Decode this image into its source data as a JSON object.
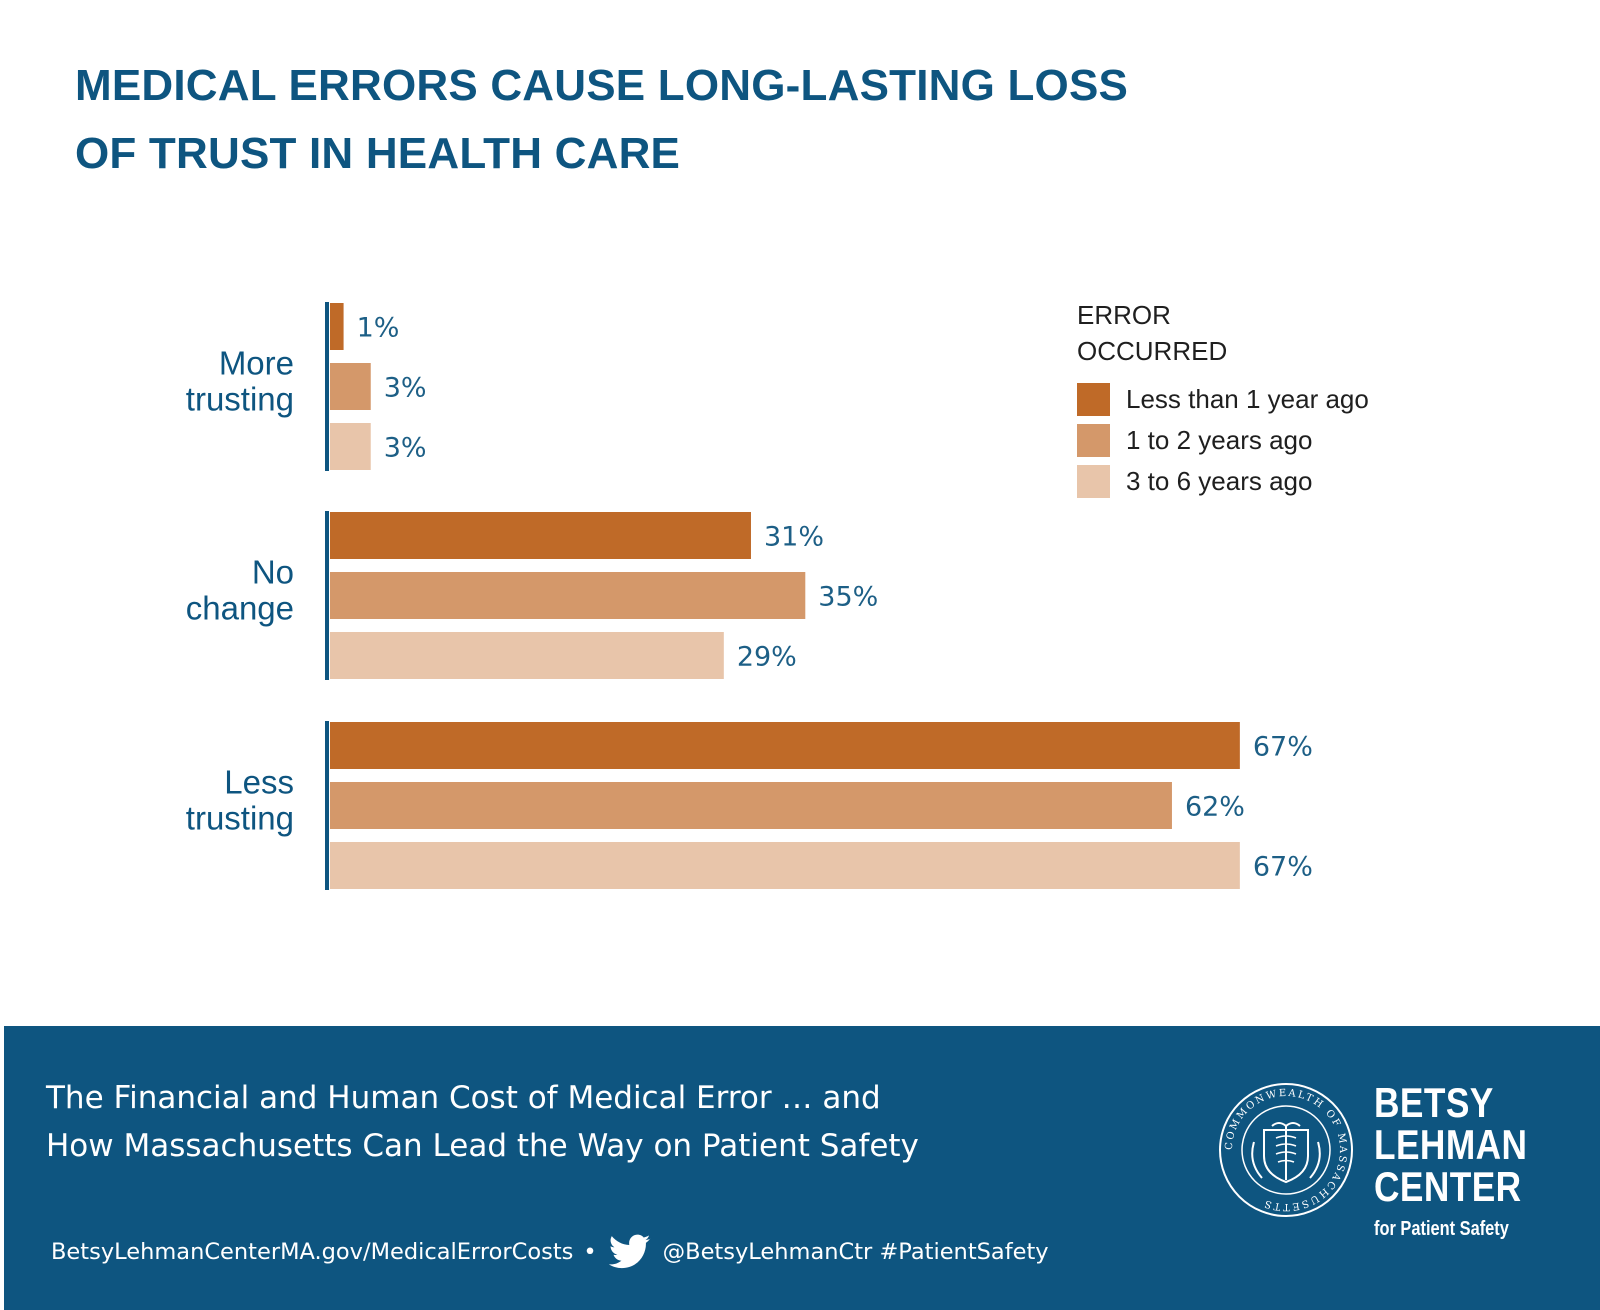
{
  "title": {
    "line1": "MEDICAL ERRORS CAUSE LONG-LASTING LOSS",
    "line2": "OF TRUST IN HEALTH CARE"
  },
  "chart_data": {
    "type": "bar",
    "orientation": "horizontal",
    "title": "MEDICAL ERRORS CAUSE LONG-LASTING LOSS OF TRUST IN HEALTH CARE",
    "categories": [
      "More trusting",
      "No change",
      "Less trusting"
    ],
    "category_labels": [
      [
        "More",
        "trusting"
      ],
      [
        "No",
        "change"
      ],
      [
        "Less",
        "trusting"
      ]
    ],
    "series": [
      {
        "name": "Less than 1 year ago",
        "color": "#bf6a28",
        "values": [
          1,
          31,
          67
        ]
      },
      {
        "name": "1 to 2 years ago",
        "color": "#d4986a",
        "values": [
          3,
          35,
          62
        ]
      },
      {
        "name": "3 to 6 years ago",
        "color": "#e8c5aa",
        "values": [
          3,
          29,
          67
        ]
      }
    ],
    "value_suffix": "%",
    "legend_title": [
      "ERROR",
      "OCCURRED"
    ],
    "legend_position": "top-right",
    "grid": false
  },
  "colors": {
    "title": "#0e5580",
    "footer_bg": "#0e5580",
    "axis_line": "#0e5580",
    "value_text": "#1d5f86"
  },
  "footer": {
    "report_line1": "The Financial and Human Cost of Medical Error … and",
    "report_line2": "How Massachusetts Can Lead the Way on Patient Safety",
    "url": "BetsyLehmanCenterMA.gov/MedicalErrorCosts",
    "separator": "•",
    "social_icon": "twitter-bird-icon",
    "handle": "@BetsyLehmanCtr #PatientSafety",
    "seal_icon": "commonwealth-seal-icon",
    "seal_text": "COMMONWEALTH OF MASSACHUSETTS",
    "logo": {
      "line1": "BETSY",
      "line2": "LEHMAN",
      "line3": "CENTER",
      "tagline": "for Patient Safety"
    }
  }
}
